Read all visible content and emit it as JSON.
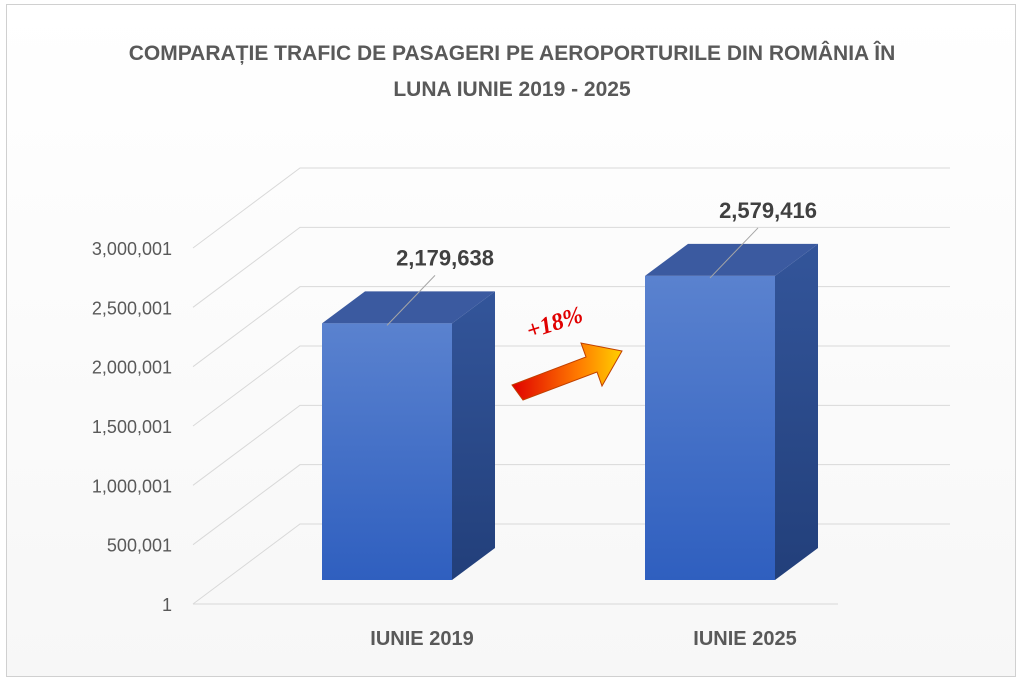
{
  "chart_data": {
    "type": "bar",
    "title_lines": [
      "COMPARAȚIE TRAFIC DE PASAGERI PE AEROPORTURILE DIN ROMÂNIA ÎN",
      "LUNA IUNIE 2019 - 2025"
    ],
    "categories": [
      "IUNIE 2019",
      "IUNIE 2025"
    ],
    "values": [
      2179638,
      2579416
    ],
    "data_labels": [
      "2,179,638",
      "2,579,416"
    ],
    "yticks": [
      "1",
      "500,001",
      "1,000,001",
      "1,500,001",
      "2,000,001",
      "2,500,001",
      "3,000,001"
    ],
    "ylim": [
      1,
      3000001
    ],
    "grid": true,
    "style": "3d-column",
    "annotation": "+18%",
    "colors": {
      "bar_front": "#4472c4",
      "bar_top": "#3b5aa0",
      "bar_side": "#2c4a8a",
      "annotation_text": "#e00000",
      "arrow": "#ff6a00"
    }
  }
}
